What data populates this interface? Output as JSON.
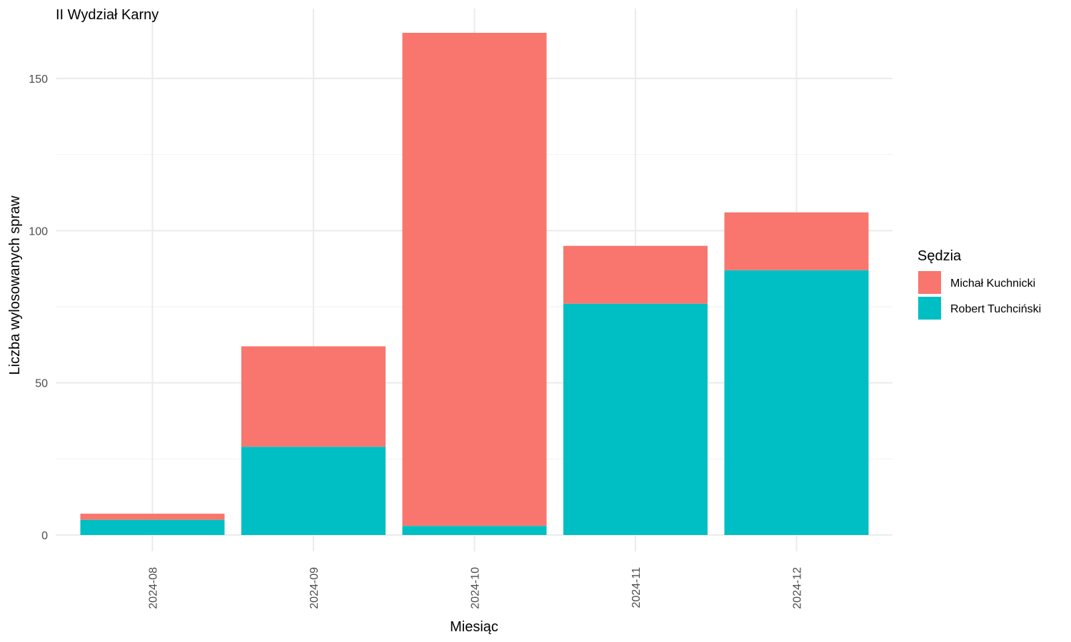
{
  "chart_data": {
    "type": "bar",
    "stacked": true,
    "title": "II Wydział Karny",
    "xlabel": "Miesiąc",
    "ylabel": "Liczba wylosowanych spraw",
    "categories": [
      "2024-08",
      "2024-09",
      "2024-10",
      "2024-11",
      "2024-12"
    ],
    "series": [
      {
        "name": "Robert Tuchciński",
        "color": "#00BFC4",
        "values": [
          5,
          29,
          3,
          76,
          87
        ]
      },
      {
        "name": "Michał Kuchnicki",
        "color": "#F8766D",
        "values": [
          2,
          33,
          162,
          19,
          19
        ]
      }
    ],
    "ylim": [
      0,
      165
    ],
    "yticks": [
      0,
      50,
      100,
      150
    ],
    "grid": true,
    "legend": {
      "title": "Sędzia",
      "position": "right",
      "order": [
        "Michał Kuchnicki",
        "Robert Tuchciński"
      ]
    }
  }
}
